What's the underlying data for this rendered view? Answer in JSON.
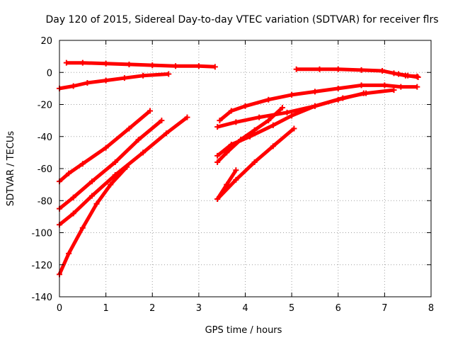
{
  "chart_data": {
    "type": "line",
    "title": "Day 120 of 2015, Sidereal Day-to-day VTEC variation (SDTVAR) for receiver flrs",
    "xlabel": "GPS time / hours",
    "ylabel": "SDTVAR / TECUs",
    "xlim": [
      0,
      8
    ],
    "ylim": [
      -140,
      20
    ],
    "xticks": [
      0,
      1,
      2,
      3,
      4,
      5,
      6,
      7,
      8
    ],
    "yticks": [
      -140,
      -120,
      -100,
      -80,
      -60,
      -40,
      -20,
      0,
      20
    ],
    "grid": true,
    "grid_style": "dotted",
    "line_color": "#ff0000",
    "series": [
      {
        "x": [
          0.15,
          0.5,
          1.0,
          1.5,
          2.0,
          2.5,
          3.0,
          3.35
        ],
        "y": [
          6,
          6,
          5.5,
          5,
          4.5,
          4,
          4,
          3.5
        ]
      },
      {
        "x": [
          0.0,
          0.3,
          0.6,
          1.0,
          1.4,
          1.8,
          2.35
        ],
        "y": [
          -10,
          -8.5,
          -6.5,
          -5,
          -3.5,
          -2,
          -1
        ]
      },
      {
        "x": [
          0.0,
          0.2,
          0.5,
          1.0,
          1.5,
          1.95
        ],
        "y": [
          -68,
          -63,
          -57,
          -47,
          -35,
          -24
        ]
      },
      {
        "x": [
          0.0,
          0.3,
          0.7,
          1.2,
          1.7,
          2.2
        ],
        "y": [
          -85,
          -78,
          -68,
          -56,
          -42,
          -30
        ]
      },
      {
        "x": [
          0.0,
          0.3,
          0.7,
          1.2,
          1.8,
          2.3,
          2.75
        ],
        "y": [
          -95,
          -88,
          -77,
          -64,
          -50,
          -38,
          -28
        ]
      },
      {
        "x": [
          0.0,
          0.2,
          0.5,
          0.8,
          1.1,
          1.45
        ],
        "y": [
          -126,
          -113,
          -97,
          -82,
          -70,
          -59
        ]
      },
      {
        "x": [
          3.45,
          3.7,
          4.0,
          4.5,
          5.0,
          5.5,
          6.0,
          6.5,
          7.0,
          7.35,
          7.7
        ],
        "y": [
          -30,
          -24,
          -21,
          -17,
          -14,
          -12,
          -10,
          -8,
          -8,
          -9,
          -9
        ]
      },
      {
        "x": [
          3.4,
          3.8,
          4.3,
          4.9,
          5.5,
          6.1,
          6.6,
          7.2
        ],
        "y": [
          -34,
          -31,
          -28,
          -25,
          -21,
          -16,
          -13,
          -11
        ]
      },
      {
        "x": [
          3.4,
          3.7,
          4.1,
          4.6,
          5.0,
          5.5,
          6.0,
          6.55
        ],
        "y": [
          -52,
          -45,
          -40,
          -33,
          -27,
          -21,
          -17,
          -13
        ]
      },
      {
        "x": [
          3.4,
          3.6,
          3.9,
          4.2,
          4.5,
          4.8
        ],
        "y": [
          -56,
          -50,
          -42,
          -36,
          -30,
          -22
        ]
      },
      {
        "x": [
          3.4,
          3.6,
          3.8
        ],
        "y": [
          -79,
          -70,
          -61
        ]
      },
      {
        "x": [
          3.4,
          3.8,
          4.2,
          4.6,
          5.05
        ],
        "y": [
          -79,
          -67,
          -56,
          -46,
          -35
        ]
      },
      {
        "x": [
          5.1,
          5.6,
          6.0,
          6.5,
          6.95,
          7.2,
          7.45,
          7.7
        ],
        "y": [
          2,
          2,
          2,
          1.5,
          1,
          -0.5,
          -2,
          -2.5
        ]
      },
      {
        "x": [
          7.3,
          7.5,
          7.72
        ],
        "y": [
          -1,
          -2,
          -3
        ]
      }
    ]
  }
}
